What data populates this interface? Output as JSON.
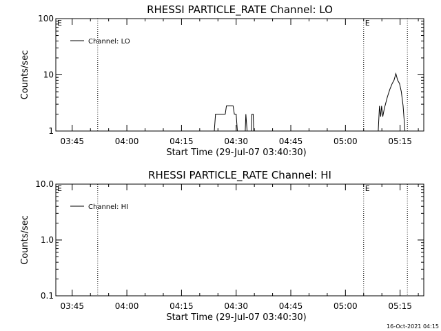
{
  "chart_data": [
    {
      "type": "line",
      "title": "RHESSI PARTICLE_RATE Channel: LO",
      "xlabel": "Start Time (29-Jul-07 03:40:30)",
      "ylabel": "Counts/sec",
      "yscale": "log",
      "ylim": [
        1,
        100
      ],
      "yticks": [
        {
          "value": 1,
          "label": "1"
        },
        {
          "value": 10,
          "label": "10"
        },
        {
          "value": 100,
          "label": "100"
        }
      ],
      "xlim": [
        "03:40:30",
        "05:21:30"
      ],
      "xticks": [
        "03:45",
        "04:00",
        "04:15",
        "04:30",
        "04:45",
        "05:00",
        "05:15"
      ],
      "legend": {
        "position": "top-left",
        "entries": [
          "Channel: LO"
        ]
      },
      "grid": false,
      "vlines": [
        {
          "x": "03:52:00",
          "style": "dotted",
          "label": ""
        },
        {
          "x": "05:05:00",
          "style": "dotted",
          "label": "E"
        },
        {
          "x": "05:17:00",
          "style": "dotted",
          "label": ""
        }
      ],
      "corner_label": "E",
      "series": [
        {
          "name": "Channel: LO",
          "points": [
            [
              "04:24:00",
              1.0
            ],
            [
              "04:24:20",
              2.0
            ],
            [
              "04:27:00",
              2.0
            ],
            [
              "04:27:20",
              2.8
            ],
            [
              "04:29:10",
              2.8
            ],
            [
              "04:29:30",
              2.0
            ],
            [
              "04:30:00",
              2.0
            ],
            [
              "04:30:20",
              1.0
            ],
            [
              "04:32:30",
              1.0
            ],
            [
              "04:32:40",
              2.0
            ],
            [
              "04:33:00",
              1.0
            ],
            [
              "04:34:10",
              1.0
            ],
            [
              "04:34:20",
              2.0
            ],
            [
              "04:34:40",
              2.0
            ],
            [
              "04:34:50",
              1.0
            ],
            [
              "05:09:00",
              1.0
            ],
            [
              "05:09:20",
              2.8
            ],
            [
              "05:09:40",
              1.8
            ],
            [
              "05:09:55",
              2.8
            ],
            [
              "05:10:15",
              1.8
            ],
            [
              "05:10:40",
              2.5
            ],
            [
              "05:11:30",
              4.0
            ],
            [
              "05:12:10",
              5.5
            ],
            [
              "05:12:50",
              7.0
            ],
            [
              "05:13:20",
              8.0
            ],
            [
              "05:13:50",
              10.5
            ],
            [
              "05:14:20",
              8.0
            ],
            [
              "05:14:50",
              7.0
            ],
            [
              "05:15:20",
              5.0
            ],
            [
              "05:15:50",
              2.8
            ],
            [
              "05:16:20",
              1.0
            ]
          ]
        }
      ]
    },
    {
      "type": "line",
      "title": "RHESSI PARTICLE_RATE Channel: HI",
      "xlabel": "Start Time (29-Jul-07 03:40:30)",
      "ylabel": "Counts/sec",
      "yscale": "log",
      "ylim": [
        0.1,
        10
      ],
      "yticks": [
        {
          "value": 0.1,
          "label": "0.1"
        },
        {
          "value": 1,
          "label": "1.0"
        },
        {
          "value": 10,
          "label": "10.0"
        }
      ],
      "xlim": [
        "03:40:30",
        "05:21:30"
      ],
      "xticks": [
        "03:45",
        "04:00",
        "04:15",
        "04:30",
        "04:45",
        "05:00",
        "05:15"
      ],
      "legend": {
        "position": "top-left",
        "entries": [
          "Channel: HI"
        ]
      },
      "grid": false,
      "vlines": [
        {
          "x": "03:52:00",
          "style": "dotted",
          "label": ""
        },
        {
          "x": "05:05:00",
          "style": "dotted",
          "label": "E"
        },
        {
          "x": "05:17:00",
          "style": "dotted",
          "label": ""
        }
      ],
      "corner_label": "E",
      "series": [
        {
          "name": "Channel: HI",
          "points": []
        }
      ]
    }
  ],
  "footer": {
    "timestamp": "16-Oct-2021 04:15"
  }
}
